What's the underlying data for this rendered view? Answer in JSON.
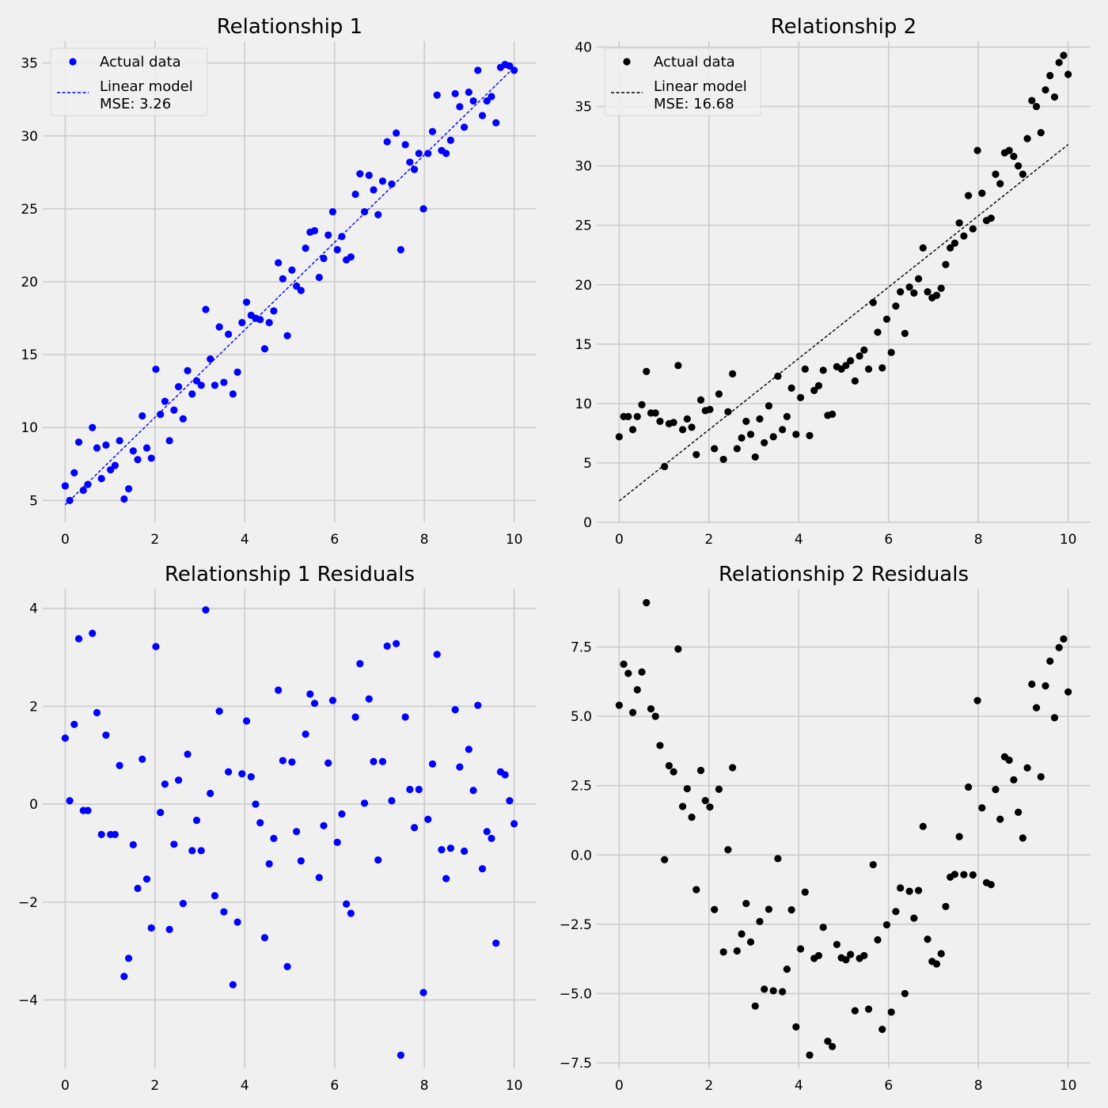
{
  "chart_data": [
    {
      "type": "scatter",
      "title": "Relationship 1",
      "xlabel": "",
      "ylabel": "",
      "xlim": [
        -0.5,
        10.5
      ],
      "ylim": [
        3.5,
        36.5
      ],
      "xticks": [
        0,
        2,
        4,
        6,
        8,
        10
      ],
      "yticks": [
        5,
        10,
        15,
        20,
        25,
        30,
        35
      ],
      "grid": true,
      "legend": {
        "position": "top-left",
        "entries": [
          {
            "label": "Actual data",
            "marker": "dot"
          },
          {
            "label": "Linear model",
            "label2": "MSE: 3.26",
            "marker": "dashed-line"
          }
        ]
      },
      "color": "#0000ff",
      "model_line": {
        "x": [
          0,
          10
        ],
        "y": [
          4.7,
          34.7
        ]
      },
      "series": [
        {
          "name": "Actual data",
          "x": [
            0.0,
            0.101,
            0.202,
            0.303,
            0.404,
            0.505,
            0.606,
            0.707,
            0.808,
            0.909,
            1.01,
            1.111,
            1.212,
            1.313,
            1.414,
            1.515,
            1.616,
            1.717,
            1.818,
            1.919,
            2.02,
            2.121,
            2.222,
            2.323,
            2.424,
            2.525,
            2.626,
            2.727,
            2.828,
            2.929,
            3.03,
            3.131,
            3.232,
            3.333,
            3.434,
            3.535,
            3.636,
            3.737,
            3.838,
            3.939,
            4.04,
            4.141,
            4.242,
            4.343,
            4.444,
            4.545,
            4.646,
            4.747,
            4.848,
            4.949,
            5.051,
            5.152,
            5.253,
            5.354,
            5.455,
            5.556,
            5.657,
            5.758,
            5.859,
            5.96,
            6.061,
            6.162,
            6.263,
            6.364,
            6.465,
            6.566,
            6.667,
            6.768,
            6.869,
            6.97,
            7.071,
            7.172,
            7.273,
            7.374,
            7.475,
            7.576,
            7.677,
            7.778,
            7.879,
            7.98,
            8.081,
            8.182,
            8.283,
            8.384,
            8.485,
            8.586,
            8.687,
            8.788,
            8.889,
            8.99,
            9.091,
            9.192,
            9.293,
            9.394,
            9.495,
            9.596,
            9.697,
            9.798,
            9.899,
            10.0
          ],
          "y": [
            6.0,
            5.0,
            6.9,
            9.0,
            5.7,
            6.1,
            10.0,
            8.6,
            6.5,
            8.8,
            7.1,
            7.4,
            9.1,
            5.1,
            5.8,
            8.4,
            7.8,
            10.8,
            8.6,
            7.9,
            14.0,
            10.9,
            11.8,
            9.1,
            11.2,
            12.8,
            10.6,
            13.9,
            12.3,
            13.2,
            12.9,
            18.1,
            14.7,
            12.9,
            16.9,
            13.1,
            16.4,
            12.3,
            13.8,
            17.2,
            18.6,
            17.7,
            17.5,
            17.4,
            15.4,
            17.2,
            18.0,
            21.3,
            20.2,
            16.3,
            20.8,
            19.7,
            19.4,
            22.3,
            23.4,
            23.5,
            20.3,
            21.6,
            23.2,
            24.8,
            22.2,
            23.1,
            21.5,
            21.7,
            26.0,
            27.4,
            24.8,
            27.3,
            26.3,
            24.6,
            26.9,
            29.6,
            26.7,
            30.2,
            22.2,
            29.4,
            28.2,
            27.7,
            28.8,
            25.0,
            28.8,
            30.3,
            32.8,
            29.0,
            28.8,
            29.7,
            32.9,
            32.0,
            30.6,
            33.0,
            32.4,
            34.5,
            31.4,
            32.4,
            32.7,
            30.9,
            34.7,
            34.9,
            34.8,
            34.5
          ]
        }
      ]
    },
    {
      "type": "scatter",
      "title": "Relationship 2",
      "xlabel": "",
      "ylabel": "",
      "xlim": [
        -0.5,
        10.5
      ],
      "ylim": [
        0,
        40.5
      ],
      "xticks": [
        0,
        2,
        4,
        6,
        8,
        10
      ],
      "yticks": [
        0,
        5,
        10,
        15,
        20,
        25,
        30,
        35,
        40
      ],
      "grid": true,
      "legend": {
        "position": "top-left",
        "entries": [
          {
            "label": "Actual data",
            "marker": "dot"
          },
          {
            "label": "Linear model",
            "label2": "MSE: 16.68",
            "marker": "dashed-line"
          }
        ]
      },
      "color": "#000000",
      "model_line": {
        "x": [
          0,
          10
        ],
        "y": [
          1.8,
          31.8
        ]
      },
      "series": [
        {
          "name": "Actual data",
          "x": [
            0.0,
            0.101,
            0.202,
            0.303,
            0.404,
            0.505,
            0.606,
            0.707,
            0.808,
            0.909,
            1.01,
            1.111,
            1.212,
            1.313,
            1.414,
            1.515,
            1.616,
            1.717,
            1.818,
            1.919,
            2.02,
            2.121,
            2.222,
            2.323,
            2.424,
            2.525,
            2.626,
            2.727,
            2.828,
            2.929,
            3.03,
            3.131,
            3.232,
            3.333,
            3.434,
            3.535,
            3.636,
            3.737,
            3.838,
            3.939,
            4.04,
            4.141,
            4.242,
            4.343,
            4.444,
            4.545,
            4.646,
            4.747,
            4.848,
            4.949,
            5.051,
            5.152,
            5.253,
            5.354,
            5.455,
            5.556,
            5.657,
            5.758,
            5.859,
            5.96,
            6.061,
            6.162,
            6.263,
            6.364,
            6.465,
            6.566,
            6.667,
            6.768,
            6.869,
            6.97,
            7.071,
            7.172,
            7.273,
            7.374,
            7.475,
            7.576,
            7.677,
            7.778,
            7.879,
            7.98,
            8.081,
            8.182,
            8.283,
            8.384,
            8.485,
            8.586,
            8.687,
            8.788,
            8.889,
            8.99,
            9.091,
            9.192,
            9.293,
            9.394,
            9.495,
            9.596,
            9.697,
            9.798,
            9.899,
            10.0
          ],
          "y": [
            7.2,
            8.9,
            8.9,
            7.8,
            8.9,
            9.9,
            12.7,
            9.2,
            9.2,
            8.5,
            4.7,
            8.3,
            8.4,
            13.2,
            7.8,
            8.7,
            8.0,
            5.7,
            10.3,
            9.4,
            9.5,
            6.2,
            10.8,
            5.3,
            9.3,
            12.5,
            6.2,
            7.1,
            8.5,
            7.4,
            5.5,
            8.7,
            6.7,
            9.8,
            7.2,
            12.3,
            7.8,
            8.9,
            11.3,
            7.4,
            10.5,
            12.9,
            7.3,
            11.1,
            11.5,
            12.8,
            9.0,
            9.1,
            13.1,
            12.9,
            13.2,
            13.6,
            11.9,
            14.0,
            14.5,
            12.9,
            18.5,
            16.0,
            13.0,
            17.1,
            14.3,
            18.2,
            19.4,
            15.9,
            19.8,
            19.3,
            20.5,
            23.1,
            19.4,
            18.9,
            19.1,
            19.7,
            21.7,
            23.1,
            23.5,
            25.2,
            24.1,
            27.5,
            24.7,
            31.3,
            27.7,
            25.4,
            25.6,
            29.3,
            28.5,
            31.1,
            31.3,
            30.8,
            30.0,
            29.3,
            32.3,
            35.5,
            35.0,
            32.8,
            36.4,
            37.6,
            35.8,
            38.7,
            39.3,
            37.7
          ]
        }
      ]
    },
    {
      "type": "scatter",
      "title": "Relationship 1 Residuals",
      "xlabel": "",
      "ylabel": "",
      "xlim": [
        -0.5,
        10.5
      ],
      "ylim": [
        -5.4,
        4.4
      ],
      "xticks": [
        0,
        2,
        4,
        6,
        8,
        10
      ],
      "yticks": [
        -4,
        -2,
        0,
        2,
        4
      ],
      "grid": true,
      "color": "#0000ff",
      "series": [
        {
          "x": [
            0.0,
            0.101,
            0.202,
            0.303,
            0.404,
            0.505,
            0.606,
            0.707,
            0.808,
            0.909,
            1.01,
            1.111,
            1.212,
            1.313,
            1.414,
            1.515,
            1.616,
            1.717,
            1.818,
            1.919,
            2.02,
            2.121,
            2.222,
            2.323,
            2.424,
            2.525,
            2.626,
            2.727,
            2.828,
            2.929,
            3.03,
            3.131,
            3.232,
            3.333,
            3.434,
            3.535,
            3.636,
            3.737,
            3.838,
            3.939,
            4.04,
            4.141,
            4.242,
            4.343,
            4.444,
            4.545,
            4.646,
            4.747,
            4.848,
            4.949,
            5.051,
            5.152,
            5.253,
            5.354,
            5.455,
            5.556,
            5.657,
            5.758,
            5.859,
            5.96,
            6.061,
            6.162,
            6.263,
            6.364,
            6.465,
            6.566,
            6.667,
            6.768,
            6.869,
            6.97,
            7.071,
            7.172,
            7.273,
            7.374,
            7.475,
            7.576,
            7.677,
            7.778,
            7.879,
            7.98,
            8.081,
            8.182,
            8.283,
            8.384,
            8.485,
            8.586,
            8.687,
            8.788,
            8.889,
            8.99,
            9.091,
            9.192,
            9.293,
            9.394,
            9.495,
            9.596,
            9.697,
            9.798,
            9.899,
            10.0
          ],
          "y": [
            1.35,
            0.07,
            1.63,
            3.38,
            -0.13,
            -0.13,
            3.49,
            1.87,
            -0.62,
            1.41,
            -0.62,
            -0.62,
            0.79,
            -3.52,
            -3.15,
            -0.83,
            -1.72,
            0.92,
            -1.53,
            -2.53,
            3.22,
            -0.17,
            0.41,
            -2.56,
            -0.82,
            0.49,
            -2.03,
            1.02,
            -0.95,
            -0.33,
            -0.95,
            3.97,
            0.22,
            -1.87,
            1.9,
            -2.2,
            0.66,
            -3.69,
            -2.41,
            0.62,
            1.7,
            0.56,
            0.0,
            -0.38,
            -2.73,
            -1.22,
            -0.7,
            2.33,
            0.89,
            -3.32,
            0.86,
            -0.56,
            -1.16,
            1.43,
            2.25,
            2.06,
            -1.5,
            -0.44,
            0.84,
            2.12,
            -0.78,
            -0.2,
            -2.04,
            -2.23,
            1.78,
            2.87,
            0.02,
            2.15,
            0.87,
            -1.14,
            0.87,
            3.23,
            0.07,
            3.28,
            -5.13,
            1.78,
            0.3,
            -0.48,
            0.3,
            -3.85,
            -0.31,
            0.82,
            3.06,
            -0.93,
            -1.52,
            -0.9,
            1.93,
            0.76,
            -0.96,
            1.12,
            0.28,
            2.02,
            -1.32,
            -0.56,
            -0.7,
            -2.84,
            0.66,
            0.6,
            0.07,
            -0.4
          ]
        }
      ]
    },
    {
      "type": "scatter",
      "title": "Relationship 2 Residuals",
      "xlabel": "",
      "ylabel": "",
      "xlim": [
        -0.5,
        10.5
      ],
      "ylim": [
        -7.7,
        9.6
      ],
      "xticks": [
        0,
        2,
        4,
        6,
        8,
        10
      ],
      "yticks": [
        -7.5,
        -5.0,
        -2.5,
        0.0,
        2.5,
        5.0,
        7.5
      ],
      "ytick_labels": [
        "−7.5",
        "−5.0",
        "−2.5",
        "0.0",
        "2.5",
        "5.0",
        "7.5"
      ],
      "grid": true,
      "color": "#000000",
      "series": [
        {
          "x": [
            0.0,
            0.101,
            0.202,
            0.303,
            0.404,
            0.505,
            0.606,
            0.707,
            0.808,
            0.909,
            1.01,
            1.111,
            1.212,
            1.313,
            1.414,
            1.515,
            1.616,
            1.717,
            1.818,
            1.919,
            2.02,
            2.121,
            2.222,
            2.323,
            2.424,
            2.525,
            2.626,
            2.727,
            2.828,
            2.929,
            3.03,
            3.131,
            3.232,
            3.333,
            3.434,
            3.535,
            3.636,
            3.737,
            3.838,
            3.939,
            4.04,
            4.141,
            4.242,
            4.343,
            4.444,
            4.545,
            4.646,
            4.747,
            4.848,
            4.949,
            5.051,
            5.152,
            5.253,
            5.354,
            5.455,
            5.556,
            5.657,
            5.758,
            5.859,
            5.96,
            6.061,
            6.162,
            6.263,
            6.364,
            6.465,
            6.566,
            6.667,
            6.768,
            6.869,
            6.97,
            7.071,
            7.172,
            7.273,
            7.374,
            7.475,
            7.576,
            7.677,
            7.778,
            7.879,
            7.98,
            8.081,
            8.182,
            8.283,
            8.384,
            8.485,
            8.586,
            8.687,
            8.788,
            8.889,
            8.99,
            9.091,
            9.192,
            9.293,
            9.394,
            9.495,
            9.596,
            9.697,
            9.798,
            9.899,
            10.0
          ],
          "y": [
            5.4,
            6.88,
            6.55,
            5.14,
            5.96,
            6.6,
            9.1,
            5.27,
            5.0,
            3.95,
            -0.17,
            3.22,
            3.0,
            7.43,
            1.75,
            2.39,
            1.36,
            -1.25,
            3.05,
            1.96,
            1.73,
            -1.97,
            2.37,
            -3.5,
            0.19,
            3.15,
            -3.46,
            -2.85,
            -1.75,
            -3.14,
            -5.45,
            -2.4,
            -4.84,
            -1.96,
            -4.9,
            -0.13,
            -4.93,
            -4.12,
            -1.98,
            -6.2,
            -3.39,
            -1.34,
            -7.22,
            -3.73,
            -3.63,
            -2.61,
            -6.72,
            -6.91,
            -3.23,
            -3.71,
            -3.78,
            -3.59,
            -5.62,
            -3.73,
            -3.63,
            -5.56,
            -0.35,
            -3.06,
            -6.29,
            -2.52,
            -5.67,
            -2.04,
            -1.19,
            -5.0,
            -1.31,
            -2.28,
            -1.28,
            1.03,
            -3.04,
            -3.84,
            -3.93,
            -3.56,
            -1.86,
            -0.8,
            -0.7,
            0.66,
            -0.71,
            2.45,
            -0.72,
            5.57,
            1.7,
            -1.0,
            -1.07,
            2.36,
            1.29,
            3.54,
            3.42,
            2.71,
            1.54,
            0.61,
            3.14,
            6.16,
            5.31,
            2.82,
            6.1,
            6.99,
            4.95,
            7.48,
            7.79,
            5.88
          ]
        }
      ]
    }
  ]
}
